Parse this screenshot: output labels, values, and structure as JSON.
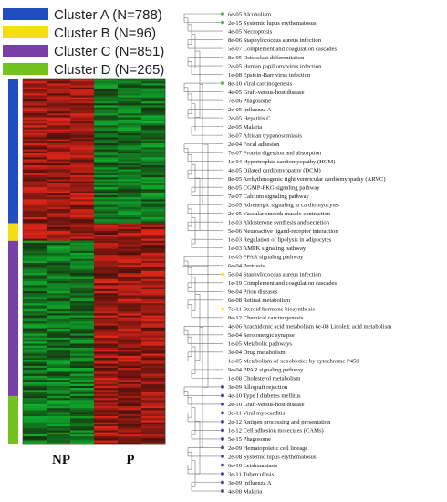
{
  "legend": [
    {
      "label": "Cluster A (N=788)",
      "color": "#1f4fbf",
      "share": 0.3939
    },
    {
      "label": "Cluster B (N=96)",
      "color": "#f2df11",
      "share": 0.048
    },
    {
      "label": "Cluster C (N=851)",
      "color": "#7a3fa6",
      "share": 0.4255
    },
    {
      "label": "Cluster D (N=265)",
      "color": "#74c21f",
      "share": 0.1325
    }
  ],
  "heatmap": {
    "x_labels": [
      "NP",
      "P"
    ],
    "colors": {
      "high": "#e0261b",
      "low": "#0fb02f",
      "mid": "#1a0a05"
    },
    "pattern": [
      {
        "cluster": "Cluster A",
        "NP": "high",
        "P": "low"
      },
      {
        "cluster": "Cluster B",
        "NP": "high",
        "P": "high"
      },
      {
        "cluster": "Cluster C",
        "NP": "low",
        "P": "high"
      },
      {
        "cluster": "Cluster D",
        "NP": "low",
        "P": "high"
      }
    ]
  },
  "pathways": [
    {
      "p": "6e-05",
      "name": "Alcoholism",
      "dot": "green"
    },
    {
      "p": "2e-15",
      "name": "Systemic lupus erythematosus",
      "dot": "green"
    },
    {
      "p": "4e-05",
      "name": "Necroptosis",
      "dot": ""
    },
    {
      "p": "8e-06",
      "name": "Staphylococcus aureus infection",
      "dot": ""
    },
    {
      "p": "5e-07",
      "name": "Complement and coagulation cascades",
      "dot": ""
    },
    {
      "p": "8e-05",
      "name": "Osteoclast differentiation",
      "dot": ""
    },
    {
      "p": "2e-05",
      "name": "Human papillomavirus infection",
      "dot": ""
    },
    {
      "p": "1e-08",
      "name": "Epstein-Barr virus infection",
      "dot": ""
    },
    {
      "p": "8e-10",
      "name": "Viral carcinogenesis",
      "dot": "green"
    },
    {
      "p": "4e-05",
      "name": "Graft-versus-host disease",
      "dot": ""
    },
    {
      "p": "7e-06",
      "name": "Phagosome",
      "dot": ""
    },
    {
      "p": "2e-05",
      "name": "Influenza A",
      "dot": ""
    },
    {
      "p": "2e-05",
      "name": "Hepatitis C",
      "dot": ""
    },
    {
      "p": "2e-05",
      "name": "Malaria",
      "dot": ""
    },
    {
      "p": "3e-07",
      "name": "African trypanosomiasis",
      "dot": ""
    },
    {
      "p": "2e-04",
      "name": "Focal adhesion",
      "dot": ""
    },
    {
      "p": "7e-07",
      "name": "Protein digestion and absorption",
      "dot": ""
    },
    {
      "p": "1e-04",
      "name": "Hypertrophic cardiomyopathy (HCM)",
      "dot": ""
    },
    {
      "p": "4e-05",
      "name": "Dilated cardiomyopathy (DCM)",
      "dot": ""
    },
    {
      "p": "8e-05",
      "name": "Arrhythmogenic right ventricular cardiomyopathy (ARVC)",
      "dot": ""
    },
    {
      "p": "8e-05",
      "name": "CGMP-PKG signaling pathway",
      "dot": ""
    },
    {
      "p": "7e-07",
      "name": "Calcium signaling pathway",
      "dot": ""
    },
    {
      "p": "2e-05",
      "name": "Adrenergic signaling in cardiomyocytes",
      "dot": ""
    },
    {
      "p": "2e-05",
      "name": "Vascular smooth muscle contraction",
      "dot": ""
    },
    {
      "p": "1e-03",
      "name": "Aldosterone synthesis and secretion",
      "dot": ""
    },
    {
      "p": "5e-06",
      "name": "Neuroactive ligand-receptor interaction",
      "dot": ""
    },
    {
      "p": "1e-03",
      "name": "Regulation of lipolysis in adipocytes",
      "dot": ""
    },
    {
      "p": "1e-03",
      "name": "AMPK signaling pathway",
      "dot": ""
    },
    {
      "p": "1e-03",
      "name": "PPAR signaling pathway",
      "dot": ""
    },
    {
      "p": "6e-04",
      "name": "Pertussis",
      "dot": ""
    },
    {
      "p": "5e-04",
      "name": "Staphylococcus aureus infection",
      "dot": "yellow"
    },
    {
      "p": "1e-19",
      "name": "Complement and coagulation cascades",
      "dot": ""
    },
    {
      "p": "9e-04",
      "name": "Prion diseases",
      "dot": ""
    },
    {
      "p": "6e-08",
      "name": "Retinal metabolism",
      "dot": ""
    },
    {
      "p": "7e-11",
      "name": "Steroid hormone biosynthesis",
      "dot": "yellow"
    },
    {
      "p": "8e-12",
      "name": "Chemical carcinogenesis",
      "dot": ""
    },
    {
      "p": "4e-06",
      "name": "Arachidonic acid metabolism 6e-08 Linoleic acid metabolism",
      "dot": ""
    },
    {
      "p": "5e-04",
      "name": "Serotonergic synapse",
      "dot": ""
    },
    {
      "p": "1e-05",
      "name": "Metabolic pathways",
      "dot": ""
    },
    {
      "p": "3e-04",
      "name": "Drug metabolism",
      "dot": ""
    },
    {
      "p": "1e-05",
      "name": "Metabolism of xenobiotics by cytochrome P450",
      "dot": ""
    },
    {
      "p": "9e-04",
      "name": "PPAR signaling pathway",
      "dot": ""
    },
    {
      "p": "1e-08",
      "name": "Cholesterol metabolism",
      "dot": ""
    },
    {
      "p": "3e-09",
      "name": "Allograft rejection",
      "dot": "blue"
    },
    {
      "p": "4e-10",
      "name": "Type I diabetes mellitus",
      "dot": "blue"
    },
    {
      "p": "2e-10",
      "name": "Graft-versus-host disease",
      "dot": "blue"
    },
    {
      "p": "3e-11",
      "name": "Viral myocarditis",
      "dot": "blue"
    },
    {
      "p": "2e-12",
      "name": "Antigen processing and presentation",
      "dot": "blue"
    },
    {
      "p": "1e-12",
      "name": "Cell adhesion molecules (CAMs)",
      "dot": "blue"
    },
    {
      "p": "5e-15",
      "name": "Phagosome",
      "dot": "blue"
    },
    {
      "p": "2e-09",
      "name": "Hematopoietic cell lineage",
      "dot": "blue"
    },
    {
      "p": "2e-08",
      "name": "Systemic lupus erythematosus",
      "dot": "blue"
    },
    {
      "p": "6e-10",
      "name": "Leishmaniasis",
      "dot": "blue"
    },
    {
      "p": "3e-11",
      "name": "Tuberculosis",
      "dot": "blue"
    },
    {
      "p": "3e-09",
      "name": "Influenza A",
      "dot": "blue"
    },
    {
      "p": "4e-08",
      "name": "Malaria",
      "dot": "blue"
    }
  ],
  "dot_colors": {
    "green": "#4caf50",
    "yellow": "#f5e63a",
    "blue": "#3b3fa0"
  }
}
